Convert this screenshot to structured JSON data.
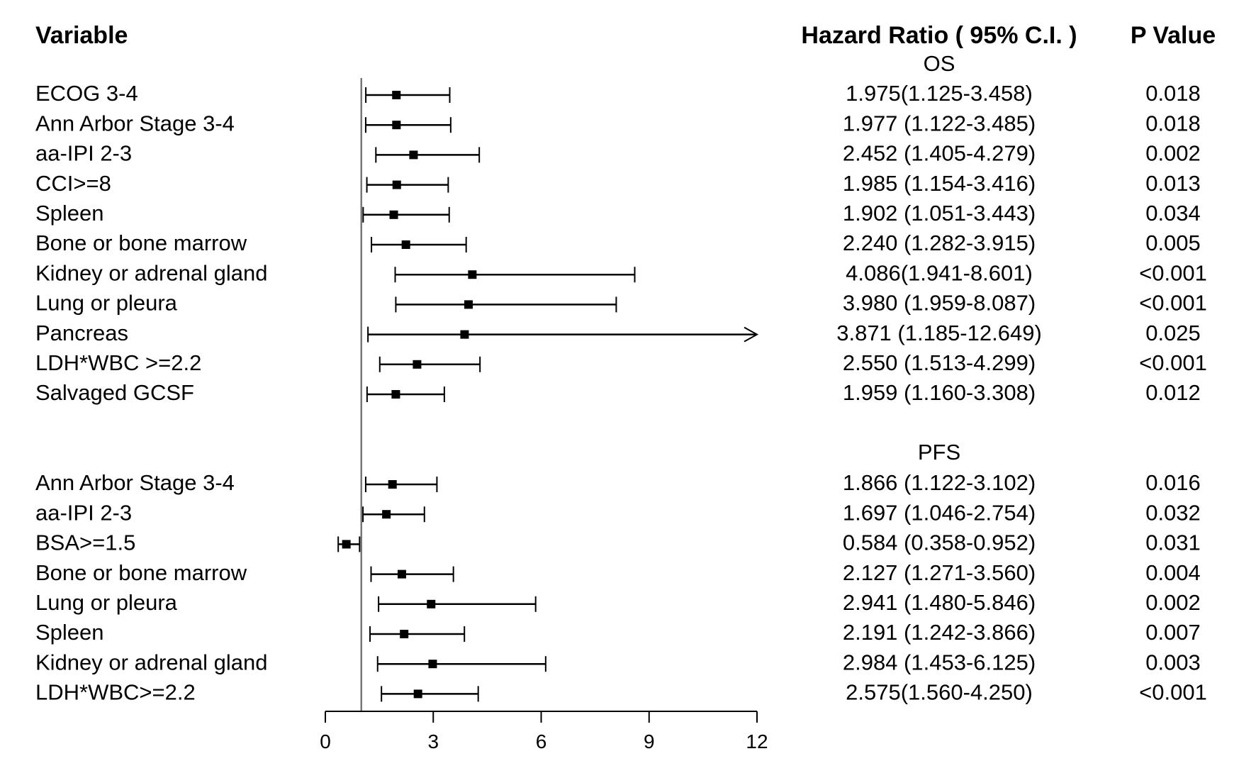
{
  "headers": {
    "variable": "Variable",
    "hazard_ratio": "Hazard Ratio ( 95% C.I. )",
    "p_value": "P Value"
  },
  "chart_data": {
    "type": "forest",
    "xlim": [
      0,
      12
    ],
    "x_ticks": [
      0,
      3,
      6,
      9,
      12
    ],
    "reference_line": 1,
    "groups": [
      {
        "name": "OS",
        "rows": [
          {
            "label": "ECOG 3-4",
            "hr": 1.975,
            "lo": 1.125,
            "hi": 3.458,
            "ci_text": "1.975(1.125-3.458)",
            "p": "0.018"
          },
          {
            "label": "Ann Arbor Stage 3-4",
            "hr": 1.977,
            "lo": 1.122,
            "hi": 3.485,
            "ci_text": "1.977 (1.122-3.485)",
            "p": "0.018"
          },
          {
            "label": "aa-IPI 2-3",
            "hr": 2.452,
            "lo": 1.405,
            "hi": 4.279,
            "ci_text": "2.452 (1.405-4.279)",
            "p": "0.002"
          },
          {
            "label": "CCI>=8",
            "hr": 1.985,
            "lo": 1.154,
            "hi": 3.416,
            "ci_text": "1.985 (1.154-3.416)",
            "p": "0.013"
          },
          {
            "label": "Spleen",
            "hr": 1.902,
            "lo": 1.051,
            "hi": 3.443,
            "ci_text": "1.902 (1.051-3.443)",
            "p": "0.034"
          },
          {
            "label": "Bone or bone marrow",
            "hr": 2.24,
            "lo": 1.282,
            "hi": 3.915,
            "ci_text": "2.240 (1.282-3.915)",
            "p": "0.005"
          },
          {
            "label": "Kidney or adrenal gland",
            "hr": 4.086,
            "lo": 1.941,
            "hi": 8.601,
            "ci_text": "4.086(1.941-8.601)",
            "p": "<0.001"
          },
          {
            "label": "Lung or pleura",
            "hr": 3.98,
            "lo": 1.959,
            "hi": 8.087,
            "ci_text": "3.980 (1.959-8.087)",
            "p": "<0.001"
          },
          {
            "label": "Pancreas",
            "hr": 3.871,
            "lo": 1.185,
            "hi": 12.649,
            "ci_text": "3.871 (1.185-12.649)",
            "p": "0.025"
          },
          {
            "label": "LDH*WBC >=2.2",
            "hr": 2.55,
            "lo": 1.513,
            "hi": 4.299,
            "ci_text": "2.550 (1.513-4.299)",
            "p": "<0.001"
          },
          {
            "label": "Salvaged GCSF",
            "hr": 1.959,
            "lo": 1.16,
            "hi": 3.308,
            "ci_text": "1.959 (1.160-3.308)",
            "p": "0.012"
          }
        ]
      },
      {
        "name": "PFS",
        "rows": [
          {
            "label": "Ann Arbor Stage 3-4",
            "hr": 1.866,
            "lo": 1.122,
            "hi": 3.102,
            "ci_text": "1.866 (1.122-3.102)",
            "p": "0.016"
          },
          {
            "label": "aa-IPI 2-3",
            "hr": 1.697,
            "lo": 1.046,
            "hi": 2.754,
            "ci_text": "1.697 (1.046-2.754)",
            "p": "0.032"
          },
          {
            "label": "BSA>=1.5",
            "hr": 0.584,
            "lo": 0.358,
            "hi": 0.952,
            "ci_text": "0.584 (0.358-0.952)",
            "p": "0.031"
          },
          {
            "label": "Bone or bone marrow",
            "hr": 2.127,
            "lo": 1.271,
            "hi": 3.56,
            "ci_text": "2.127 (1.271-3.560)",
            "p": "0.004"
          },
          {
            "label": "Lung or pleura",
            "hr": 2.941,
            "lo": 1.48,
            "hi": 5.846,
            "ci_text": "2.941 (1.480-5.846)",
            "p": "0.002"
          },
          {
            "label": "Spleen",
            "hr": 2.191,
            "lo": 1.242,
            "hi": 3.866,
            "ci_text": "2.191 (1.242-3.866)",
            "p": "0.007"
          },
          {
            "label": "Kidney or adrenal gland",
            "hr": 2.984,
            "lo": 1.453,
            "hi": 6.125,
            "ci_text": "2.984 (1.453-6.125)",
            "p": "0.003"
          },
          {
            "label": "LDH*WBC>=2.2",
            "hr": 2.575,
            "lo": 1.56,
            "hi": 4.25,
            "ci_text": "2.575(1.560-4.250)",
            "p": "<0.001"
          }
        ]
      }
    ]
  }
}
